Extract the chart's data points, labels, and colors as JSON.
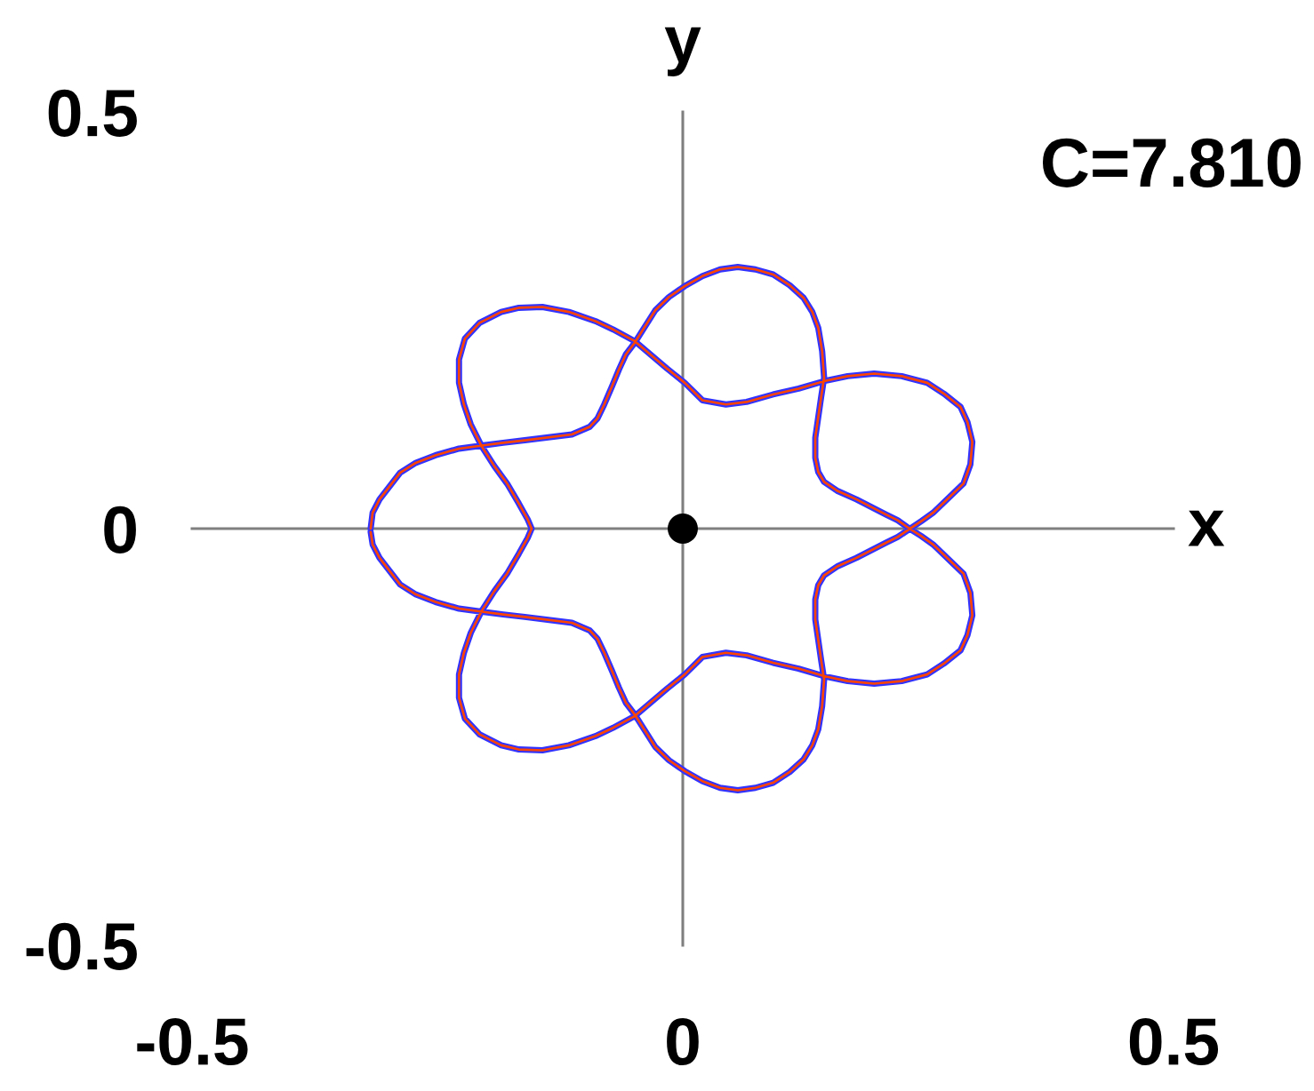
{
  "chart_data": {
    "type": "line",
    "xlabel": "x",
    "ylabel": "y",
    "annotations": [
      "C=7.810"
    ],
    "xlim": [
      -0.5,
      0.5
    ],
    "ylim": [
      -0.5,
      0.5
    ],
    "xticks": [
      -0.5,
      0,
      0.5
    ],
    "yticks": [
      -0.5,
      0,
      0.5
    ],
    "line_style": "solid",
    "series": [
      {
        "color": "#3333ff",
        "x": [
          -0.318,
          -0.316,
          -0.309,
          -0.288,
          -0.272,
          -0.252,
          -0.228,
          -0.203,
          -0.183,
          -0.161,
          -0.113,
          -0.095,
          -0.087,
          -0.08,
          -0.072,
          -0.065,
          -0.058,
          -0.049,
          -0.028,
          -0.014,
          0.002,
          0.02,
          0.038,
          0.056,
          0.074,
          0.092,
          0.109,
          0.123,
          0.132,
          0.138,
          0.142,
          0.144,
          0.141,
          0.135,
          0.135,
          0.138,
          0.144,
          0.158,
          0.177,
          0.207,
          0.219,
          0.231,
          0.243,
          0.255,
          0.286,
          0.293,
          0.295,
          0.29,
          0.283,
          0.266,
          0.249,
          0.223,
          0.195,
          0.168,
          0.144,
          0.118,
          0.092,
          0.065,
          0.044,
          0.02,
          0.002,
          -0.016,
          -0.049,
          -0.071,
          -0.089,
          -0.116,
          -0.143,
          -0.167,
          -0.185,
          -0.207,
          -0.222,
          -0.228,
          -0.228,
          -0.223,
          -0.216,
          -0.205,
          -0.192,
          -0.179,
          -0.167,
          -0.158,
          -0.154,
          -0.158,
          -0.167,
          -0.179,
          -0.192,
          -0.205,
          -0.216,
          -0.223,
          -0.228,
          -0.228,
          -0.222,
          -0.207,
          -0.185,
          -0.167,
          -0.143,
          -0.116,
          -0.089,
          -0.071,
          -0.049,
          -0.016,
          0.002,
          0.02,
          0.044,
          0.065,
          0.092,
          0.118,
          0.144,
          0.168,
          0.195,
          0.223,
          0.249,
          0.266,
          0.283,
          0.29,
          0.295,
          0.293,
          0.286,
          0.255,
          0.243,
          0.219,
          0.207,
          0.177,
          0.158,
          0.144,
          0.138,
          0.135,
          0.135,
          0.141,
          0.144,
          0.142,
          0.138,
          0.132,
          0.123,
          0.109,
          0.092,
          0.074,
          0.056,
          0.038,
          0.02,
          0.002,
          -0.014,
          -0.028,
          -0.049,
          -0.058,
          -0.065,
          -0.072,
          -0.08,
          -0.087,
          -0.095,
          -0.113,
          -0.161,
          -0.183,
          -0.203,
          -0.228,
          -0.252,
          -0.272,
          -0.288,
          -0.309,
          -0.316,
          -0.318
        ],
        "values": [
          0,
          0.019,
          0.035,
          0.067,
          0.079,
          0.088,
          0.096,
          0.1,
          0.103,
          0.106,
          0.113,
          0.122,
          0.132,
          0.149,
          0.171,
          0.191,
          0.209,
          0.223,
          0.262,
          0.278,
          0.291,
          0.303,
          0.311,
          0.314,
          0.311,
          0.305,
          0.292,
          0.277,
          0.26,
          0.241,
          0.213,
          0.181,
          0.158,
          0.109,
          0.085,
          0.068,
          0.056,
          0.045,
          0.035,
          0.017,
          0.01,
          0,
          -0.009,
          -0.019,
          -0.054,
          -0.077,
          -0.104,
          -0.128,
          -0.146,
          -0.162,
          -0.175,
          -0.183,
          -0.186,
          -0.183,
          -0.177,
          -0.168,
          -0.161,
          -0.152,
          -0.149,
          -0.154,
          -0.175,
          -0.192,
          -0.225,
          -0.239,
          -0.249,
          -0.26,
          -0.266,
          -0.265,
          -0.26,
          -0.247,
          -0.228,
          -0.203,
          -0.175,
          -0.149,
          -0.125,
          -0.099,
          -0.075,
          -0.054,
          -0.03,
          -0.011,
          0,
          0.011,
          0.03,
          0.054,
          0.075,
          0.099,
          0.125,
          0.149,
          0.175,
          0.203,
          0.228,
          0.247,
          0.26,
          0.265,
          0.266,
          0.26,
          0.249,
          0.239,
          0.225,
          0.192,
          0.175,
          0.154,
          0.149,
          0.152,
          0.161,
          0.168,
          0.177,
          0.183,
          0.186,
          0.183,
          0.175,
          0.162,
          0.146,
          0.128,
          0.104,
          0.077,
          0.054,
          0.019,
          0.009,
          -0.01,
          -0.017,
          -0.035,
          -0.045,
          -0.056,
          -0.068,
          -0.085,
          -0.109,
          -0.158,
          -0.181,
          -0.213,
          -0.241,
          -0.26,
          -0.277,
          -0.292,
          -0.305,
          -0.311,
          -0.314,
          -0.311,
          -0.303,
          -0.291,
          -0.278,
          -0.262,
          -0.223,
          -0.209,
          -0.191,
          -0.171,
          -0.149,
          -0.132,
          -0.122,
          -0.113,
          -0.106,
          -0.103,
          -0.1,
          -0.096,
          -0.088,
          -0.079,
          -0.067,
          -0.035,
          -0.019,
          -0.004
        ]
      },
      {
        "color": "#ff4500",
        "x": [
          -0.318,
          -0.316,
          -0.309,
          -0.288,
          -0.272,
          -0.252,
          -0.228,
          -0.203,
          -0.183,
          -0.161,
          -0.113,
          -0.095,
          -0.087,
          -0.08,
          -0.072,
          -0.065,
          -0.058,
          -0.049,
          -0.028,
          -0.014,
          0.002,
          0.02,
          0.038,
          0.056,
          0.074,
          0.092,
          0.109,
          0.123,
          0.132,
          0.138,
          0.142,
          0.144,
          0.141,
          0.135,
          0.135,
          0.138,
          0.144,
          0.158,
          0.177,
          0.207,
          0.219,
          0.231,
          0.243,
          0.255,
          0.286,
          0.293,
          0.295,
          0.29,
          0.283,
          0.266,
          0.249,
          0.223,
          0.195,
          0.168,
          0.144,
          0.118,
          0.092,
          0.065,
          0.044,
          0.02,
          0.002,
          -0.016,
          -0.049,
          -0.071,
          -0.089,
          -0.116,
          -0.143,
          -0.167,
          -0.185,
          -0.207,
          -0.222,
          -0.228,
          -0.228,
          -0.223,
          -0.216,
          -0.205,
          -0.192,
          -0.179,
          -0.167,
          -0.158,
          -0.154,
          -0.158,
          -0.167,
          -0.179,
          -0.192,
          -0.205,
          -0.216,
          -0.223,
          -0.228,
          -0.228,
          -0.222,
          -0.207,
          -0.185,
          -0.167,
          -0.143,
          -0.116,
          -0.089,
          -0.071,
          -0.049,
          -0.016,
          0.002,
          0.02,
          0.044,
          0.065,
          0.092,
          0.118,
          0.144,
          0.168,
          0.195,
          0.223,
          0.249,
          0.266,
          0.283,
          0.29,
          0.295,
          0.293,
          0.286,
          0.255,
          0.243,
          0.219,
          0.207,
          0.177,
          0.158,
          0.144,
          0.138,
          0.135,
          0.135,
          0.141,
          0.144,
          0.142,
          0.138,
          0.132,
          0.123,
          0.109,
          0.092,
          0.074,
          0.056,
          0.038,
          0.02,
          0.002,
          -0.014,
          -0.028,
          -0.049,
          -0.058,
          -0.065,
          -0.072,
          -0.08,
          -0.087,
          -0.095,
          -0.113,
          -0.161,
          -0.183,
          -0.203,
          -0.228,
          -0.252,
          -0.272,
          -0.288,
          -0.309,
          -0.316,
          -0.318
        ],
        "values": [
          0,
          0.019,
          0.035,
          0.067,
          0.079,
          0.088,
          0.096,
          0.1,
          0.103,
          0.106,
          0.113,
          0.122,
          0.132,
          0.149,
          0.171,
          0.191,
          0.209,
          0.223,
          0.262,
          0.278,
          0.291,
          0.303,
          0.311,
          0.314,
          0.311,
          0.305,
          0.292,
          0.277,
          0.26,
          0.241,
          0.213,
          0.181,
          0.158,
          0.109,
          0.085,
          0.068,
          0.056,
          0.045,
          0.035,
          0.017,
          0.01,
          0,
          -0.009,
          -0.019,
          -0.054,
          -0.077,
          -0.104,
          -0.128,
          -0.146,
          -0.162,
          -0.175,
          -0.183,
          -0.186,
          -0.183,
          -0.177,
          -0.168,
          -0.161,
          -0.152,
          -0.149,
          -0.154,
          -0.175,
          -0.192,
          -0.225,
          -0.239,
          -0.249,
          -0.26,
          -0.266,
          -0.265,
          -0.26,
          -0.247,
          -0.228,
          -0.203,
          -0.175,
          -0.149,
          -0.125,
          -0.099,
          -0.075,
          -0.054,
          -0.03,
          -0.011,
          0,
          0.011,
          0.03,
          0.054,
          0.075,
          0.099,
          0.125,
          0.149,
          0.175,
          0.203,
          0.228,
          0.247,
          0.26,
          0.265,
          0.266,
          0.26,
          0.249,
          0.239,
          0.225,
          0.192,
          0.175,
          0.154,
          0.149,
          0.152,
          0.161,
          0.168,
          0.177,
          0.183,
          0.186,
          0.183,
          0.175,
          0.162,
          0.146,
          0.128,
          0.104,
          0.077,
          0.054,
          0.019,
          0.009,
          -0.01,
          -0.017,
          -0.035,
          -0.045,
          -0.056,
          -0.068,
          -0.085,
          -0.109,
          -0.158,
          -0.181,
          -0.213,
          -0.241,
          -0.26,
          -0.277,
          -0.292,
          -0.305,
          -0.311,
          -0.314,
          -0.311,
          -0.303,
          -0.291,
          -0.278,
          -0.262,
          -0.223,
          -0.209,
          -0.191,
          -0.171,
          -0.149,
          -0.132,
          -0.122,
          -0.113,
          -0.106,
          -0.103,
          -0.1,
          -0.096,
          -0.088,
          -0.079,
          -0.067,
          -0.035,
          -0.019,
          -0.004
        ]
      },
      {
        "type": "scatter",
        "marker": "circle",
        "color": "#000000",
        "x": [
          0
        ],
        "values": [
          0
        ]
      }
    ]
  }
}
